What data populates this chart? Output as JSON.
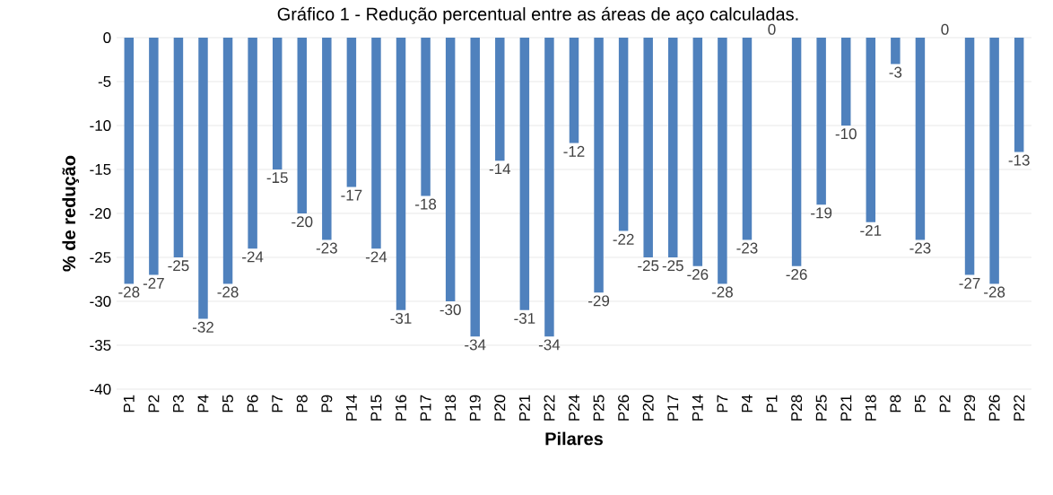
{
  "chart_data": {
    "type": "bar",
    "title": "Gráfico 1 - Redução percentual entre as áreas de aço calculadas.",
    "xlabel": "Pilares",
    "ylabel": "% de redução",
    "categories": [
      "P1",
      "P2",
      "P3",
      "P4",
      "P5",
      "P6",
      "P7",
      "P8",
      "P9",
      "P14",
      "P15",
      "P16",
      "P17",
      "P18",
      "P19",
      "P20",
      "P21",
      "P22",
      "P24",
      "P25",
      "P26",
      "P20",
      "P17",
      "P14",
      "P7",
      "P4",
      "P1",
      "P28",
      "P25",
      "P21",
      "P18",
      "P8",
      "P5",
      "P2",
      "P29",
      "P26",
      "P22"
    ],
    "values": [
      -28,
      -27,
      -25,
      -32,
      -28,
      -24,
      -15,
      -20,
      -23,
      -17,
      -24,
      -31,
      -18,
      -30,
      -34,
      -14,
      -31,
      -34,
      -12,
      -29,
      -22,
      -25,
      -25,
      -26,
      -28,
      -23,
      0,
      -26,
      -19,
      -10,
      -21,
      -3,
      -23,
      0,
      -27,
      -28,
      -13
    ],
    "color": "#4f81bd",
    "ylim": [
      -40,
      0
    ],
    "yticks": [
      -40,
      -35,
      -30,
      -25,
      -20,
      -15,
      -10,
      -5,
      0
    ],
    "grid": "y",
    "data_labels": true
  }
}
